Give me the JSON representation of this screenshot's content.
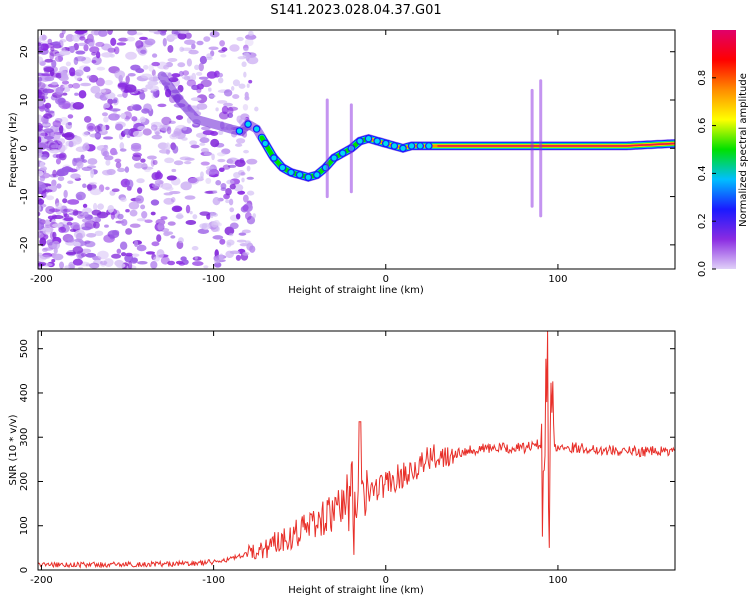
{
  "title": "S141.2023.028.04.37.G01",
  "colors": {
    "line": "#e8302a",
    "axis": "#000000",
    "trackCore": "#e8174a"
  },
  "chart_data": [
    {
      "type": "heatmap",
      "title": "S141.2023.028.04.37.G01",
      "xlabel": "Height of straight line (km)",
      "ylabel": "Frequency (Hz)",
      "xlim": [
        -202,
        168
      ],
      "ylim": [
        -25,
        24.5
      ],
      "xticks": [
        -200,
        -100,
        0,
        100
      ],
      "yticks": [
        20,
        10,
        0,
        -10,
        -20
      ],
      "ridge": {
        "x": [
          -130,
          -120,
          -110,
          -100,
          -90,
          -84,
          -80,
          -75,
          -70,
          -65,
          -60,
          -55,
          -50,
          -45,
          -40,
          -35,
          -30,
          -25,
          -20,
          -15,
          -10,
          -5,
          0,
          5,
          10,
          15,
          20,
          30,
          60,
          100,
          140,
          168
        ],
        "y": [
          15,
          10,
          6,
          5,
          4,
          3.5,
          5,
          4,
          1,
          -2,
          -4,
          -5,
          -5.5,
          -6,
          -5.5,
          -4,
          -2,
          -1,
          0,
          1.5,
          2,
          1.5,
          1,
          0.5,
          0,
          0.5,
          0.5,
          0.5,
          0.5,
          0.5,
          0.5,
          1
        ]
      },
      "colorbar": {
        "label": "Normalized spectral amplitude",
        "range": [
          0,
          1
        ],
        "ticks": [
          0.0,
          0.2,
          0.4,
          0.6,
          0.8
        ],
        "tick_labels": [
          "0.0",
          "0.2",
          "0.4",
          "0.6",
          "0.8"
        ],
        "colormap": [
          "#e0d0f8",
          "#8a2be2",
          "#1a1aff",
          "#00bfff",
          "#00e000",
          "#ffff00",
          "#ff8c00",
          "#ff0000",
          "#e0006a"
        ]
      }
    },
    {
      "type": "line",
      "xlabel": "Height of straight line (km)",
      "ylabel": "SNR (10 * v/v)",
      "xlim": [
        -202,
        168
      ],
      "ylim": [
        0,
        540
      ],
      "xticks": [
        -200,
        -100,
        0,
        100
      ],
      "yticks": [
        0,
        100,
        200,
        300,
        400,
        500
      ],
      "series": [
        {
          "name": "SNR",
          "x": [
            -200,
            -180,
            -160,
            -140,
            -120,
            -110,
            -100,
            -90,
            -80,
            -70,
            -60,
            -50,
            -40,
            -30,
            -20,
            -15,
            -10,
            -5,
            0,
            10,
            20,
            30,
            40,
            50,
            60,
            70,
            80,
            85,
            90,
            93,
            96,
            100,
            110,
            120,
            140,
            168
          ],
          "y": [
            12,
            12,
            12,
            13,
            14,
            15,
            18,
            25,
            35,
            50,
            70,
            90,
            110,
            130,
            155,
            165,
            175,
            185,
            195,
            215,
            240,
            258,
            265,
            272,
            275,
            275,
            276,
            280,
            285,
            290,
            282,
            278,
            277,
            273,
            268,
            268
          ]
        }
      ],
      "annotations": [
        {
          "x": -15,
          "y": 335,
          "text": ""
        },
        {
          "x": 94,
          "y": 540,
          "text": ""
        }
      ]
    }
  ]
}
